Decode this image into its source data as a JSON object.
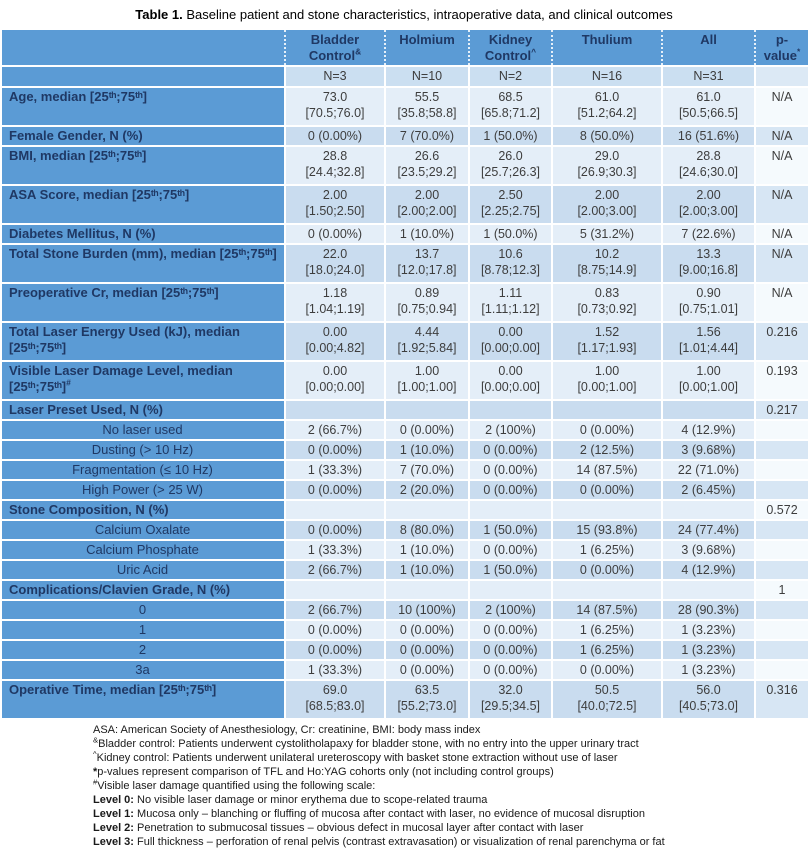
{
  "title": {
    "bold": "Table 1.",
    "text": " Baseline patient and stone characteristics, intraoperative data, and clinical outcomes"
  },
  "colors": {
    "header_blue": "#5B9BD5",
    "band_light": "#E4EEF8",
    "band_dark": "#C9DCEF",
    "p_light": "#F5FAFD",
    "p_dark": "#D7E6F4",
    "label_text": "#1F3864",
    "data_text": "#3d3d3d"
  },
  "table": {
    "columns": [
      {
        "title": "Bladder\nControl",
        "sup": "&",
        "n": "N=3"
      },
      {
        "title": "Holmium",
        "n": "N=10"
      },
      {
        "title": "Kidney\nControl",
        "sup": "^",
        "n": "N=2"
      },
      {
        "title": "Thulium",
        "n": "N=16"
      },
      {
        "title": "All",
        "n": "N=31"
      },
      {
        "title": "p-\nvalue",
        "sup": "*",
        "n": ""
      }
    ],
    "rows": [
      {
        "label": "Age, median [25ᵗʰ;75ᵗʰ]",
        "values": [
          "73.0\n[70.5;76.0]",
          "55.5\n[35.8;58.8]",
          "68.5\n[65.8;71.2]",
          "61.0\n[51.2;64.2]",
          "61.0\n[50.5;66.5]"
        ],
        "p": "N/A"
      },
      {
        "label": "Female Gender, N (%)",
        "values": [
          "0 (0.00%)",
          "7 (70.0%)",
          "1 (50.0%)",
          "8 (50.0%)",
          "16 (51.6%)"
        ],
        "p": "N/A"
      },
      {
        "label": "BMI, median [25ᵗʰ;75ᵗʰ]",
        "values": [
          "28.8\n[24.4;32.8]",
          "26.6\n[23.5;29.2]",
          "26.0\n[25.7;26.3]",
          "29.0\n[26.9;30.3]",
          "28.8\n[24.6;30.0]"
        ],
        "p": "N/A"
      },
      {
        "label": "ASA Score, median [25ᵗʰ;75ᵗʰ]",
        "values": [
          "2.00\n[1.50;2.50]",
          "2.00\n[2.00;2.00]",
          "2.50\n[2.25;2.75]",
          "2.00\n[2.00;3.00]",
          "2.00\n[2.00;3.00]"
        ],
        "p": "N/A"
      },
      {
        "label": "Diabetes Mellitus, N (%)",
        "values": [
          "0 (0.00%)",
          "1 (10.0%)",
          "1 (50.0%)",
          "5 (31.2%)",
          "7 (22.6%)"
        ],
        "p": "N/A"
      },
      {
        "label": "Total Stone Burden (mm), median [25ᵗʰ;75ᵗʰ]",
        "values": [
          "22.0\n[18.0;24.0]",
          "13.7\n[12.0;17.8]",
          "10.6\n[8.78;12.3]",
          "10.2\n[8.75;14.9]",
          "13.3\n[9.00;16.8]"
        ],
        "p": "N/A"
      },
      {
        "label": "Preoperative Cr, median [25ᵗʰ;75ᵗʰ]",
        "values": [
          "1.18\n[1.04;1.19]",
          "0.89\n[0.75;0.94]",
          "1.11\n[1.11;1.12]",
          "0.83\n[0.73;0.92]",
          "0.90\n[0.75;1.01]"
        ],
        "p": "N/A"
      },
      {
        "label": "Total Laser Energy Used (kJ), median [25ᵗʰ;75ᵗʰ]",
        "values": [
          "0.00\n[0.00;4.82]",
          "4.44\n[1.92;5.84]",
          "0.00\n[0.00;0.00]",
          "1.52\n[1.17;1.93]",
          "1.56\n[1.01;4.44]"
        ],
        "p": "0.216"
      },
      {
        "label": "Visible Laser Damage Level, median [25ᵗʰ;75ᵗʰ]",
        "sup": "#",
        "values": [
          "0.00\n[0.00;0.00]",
          "1.00\n[1.00;1.00]",
          "0.00\n[0.00;0.00]",
          "1.00\n[0.00;1.00]",
          "1.00\n[0.00;1.00]"
        ],
        "p": "0.193"
      },
      {
        "label": "Laser Preset Used, N (%)",
        "values": [
          "",
          "",
          "",
          "",
          ""
        ],
        "p": "0.217"
      },
      {
        "label": "No laser used",
        "sub": true,
        "values": [
          "2 (66.7%)",
          "0 (0.00%)",
          "2 (100%)",
          "0 (0.00%)",
          "4 (12.9%)"
        ],
        "p": ""
      },
      {
        "label": "Dusting (> 10 Hz)",
        "sub": true,
        "values": [
          "0 (0.00%)",
          "1 (10.0%)",
          "0 (0.00%)",
          "2 (12.5%)",
          "3 (9.68%)"
        ],
        "p": ""
      },
      {
        "label": "Fragmentation (≤ 10 Hz)",
        "sub": true,
        "values": [
          "1 (33.3%)",
          "7 (70.0%)",
          "0 (0.00%)",
          "14 (87.5%)",
          "22 (71.0%)"
        ],
        "p": ""
      },
      {
        "label": "High Power (> 25 W)",
        "sub": true,
        "values": [
          "0 (0.00%)",
          "2 (20.0%)",
          "0 (0.00%)",
          "0 (0.00%)",
          "2 (6.45%)"
        ],
        "p": ""
      },
      {
        "label": "Stone Composition, N (%)",
        "values": [
          "",
          "",
          "",
          "",
          ""
        ],
        "p": "0.572"
      },
      {
        "label": "Calcium Oxalate",
        "sub": true,
        "values": [
          "0 (0.00%)",
          "8 (80.0%)",
          "1 (50.0%)",
          "15 (93.8%)",
          "24 (77.4%)"
        ],
        "p": ""
      },
      {
        "label": "Calcium Phosphate",
        "sub": true,
        "values": [
          "1 (33.3%)",
          "1 (10.0%)",
          "0 (0.00%)",
          "1 (6.25%)",
          "3 (9.68%)"
        ],
        "p": ""
      },
      {
        "label": "Uric Acid",
        "sub": true,
        "values": [
          "2 (66.7%)",
          "1 (10.0%)",
          "1 (50.0%)",
          "0 (0.00%)",
          "4 (12.9%)"
        ],
        "p": ""
      },
      {
        "label": "Complications/Clavien Grade, N (%)",
        "values": [
          "",
          "",
          "",
          "",
          ""
        ],
        "p": "1"
      },
      {
        "label": "0",
        "sub": true,
        "values": [
          "2 (66.7%)",
          "10 (100%)",
          "2 (100%)",
          "14 (87.5%)",
          "28 (90.3%)"
        ],
        "p": ""
      },
      {
        "label": "1",
        "sub": true,
        "values": [
          "0 (0.00%)",
          "0 (0.00%)",
          "0 (0.00%)",
          "1 (6.25%)",
          "1 (3.23%)"
        ],
        "p": ""
      },
      {
        "label": "2",
        "sub": true,
        "values": [
          "0 (0.00%)",
          "0 (0.00%)",
          "0 (0.00%)",
          "1 (6.25%)",
          "1 (3.23%)"
        ],
        "p": ""
      },
      {
        "label": "3a",
        "sub": true,
        "values": [
          "1 (33.3%)",
          "0 (0.00%)",
          "0 (0.00%)",
          "0 (0.00%)",
          "1 (3.23%)"
        ],
        "p": ""
      },
      {
        "label": "Operative Time, median [25ᵗʰ;75ᵗʰ]",
        "values": [
          "69.0\n[68.5;83.0]",
          "63.5\n[55.2;73.0]",
          "32.0\n[29.5;34.5]",
          "50.5\n[40.0;72.5]",
          "56.0\n[40.5;73.0]"
        ],
        "p": "0.316"
      }
    ]
  },
  "footnotes": [
    {
      "text": "ASA: American Society of Anesthesiology, Cr: creatinine, BMI: body mass index"
    },
    {
      "sup": "&",
      "text": "Bladder control: Patients underwent cystolitholapaxy for bladder stone, with no entry into the upper urinary tract"
    },
    {
      "sup": "^",
      "text": "Kidney control: Patients underwent unilateral ureteroscopy with basket stone extraction without use of laser"
    },
    {
      "bold": "*",
      "text": "p-values represent comparison of TFL and Ho:YAG cohorts only (not including control groups)"
    },
    {
      "sup": "#",
      "text": "Visible laser damage quantified using the following scale:"
    },
    {
      "bold": "Level 0:",
      "text": " No visible laser damage or minor erythema due to scope-related trauma"
    },
    {
      "bold": "Level 1:",
      "text": " Mucosa only – blanching or fluffing of mucosa after contact with laser, no evidence of mucosal disruption"
    },
    {
      "bold": "Level 2:",
      "text": " Penetration to submucosal tissues – obvious defect in mucosal layer after contact with laser"
    },
    {
      "bold": "Level 3:",
      "text": " Full thickness – perforation of renal pelvis (contrast extravasation) or visualization of renal parenchyma or fat"
    }
  ]
}
